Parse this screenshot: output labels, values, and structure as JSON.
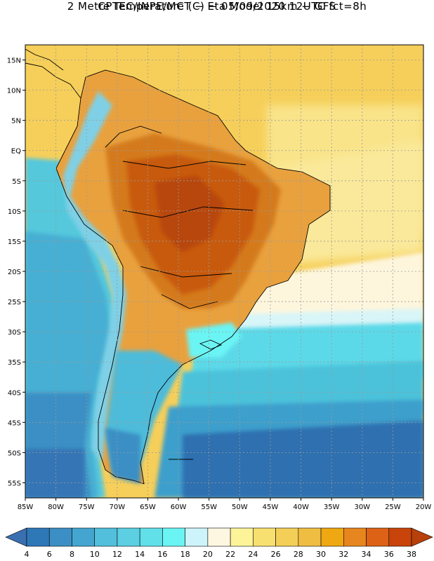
{
  "header": {
    "line1": "CPTEC/INPE/MCT −  Eta Model 15km − GFS",
    "line2": "2 Metre Temperature (C) − 05/09/2020 12UTC fct=8h"
  },
  "map": {
    "region": "South America",
    "lon_range": [
      -85,
      -20
    ],
    "lat_range": [
      -57.5,
      17.5
    ],
    "lat_ticks": [
      {
        "label": "15N",
        "value": 15
      },
      {
        "label": "10N",
        "value": 10
      },
      {
        "label": "5N",
        "value": 5
      },
      {
        "label": "EQ",
        "value": 0
      },
      {
        "label": "5S",
        "value": -5
      },
      {
        "label": "10S",
        "value": -10
      },
      {
        "label": "15S",
        "value": -15
      },
      {
        "label": "20S",
        "value": -20
      },
      {
        "label": "25S",
        "value": -25
      },
      {
        "label": "30S",
        "value": -30
      },
      {
        "label": "35S",
        "value": -35
      },
      {
        "label": "40S",
        "value": -40
      },
      {
        "label": "45S",
        "value": -45
      },
      {
        "label": "50S",
        "value": -50
      },
      {
        "label": "55S",
        "value": -55
      }
    ],
    "lon_ticks": [
      {
        "label": "85W",
        "value": -85
      },
      {
        "label": "80W",
        "value": -80
      },
      {
        "label": "75W",
        "value": -75
      },
      {
        "label": "70W",
        "value": -70
      },
      {
        "label": "65W",
        "value": -65
      },
      {
        "label": "60W",
        "value": -60
      },
      {
        "label": "55W",
        "value": -55
      },
      {
        "label": "50W",
        "value": -50
      },
      {
        "label": "45W",
        "value": -45
      },
      {
        "label": "40W",
        "value": -40
      },
      {
        "label": "35W",
        "value": -35
      },
      {
        "label": "30W",
        "value": -30
      },
      {
        "label": "25W",
        "value": -25
      },
      {
        "label": "20W",
        "value": -20
      }
    ]
  },
  "colorbar": {
    "labels": [
      "4",
      "6",
      "8",
      "10",
      "12",
      "14",
      "16",
      "18",
      "20",
      "22",
      "24",
      "26",
      "28",
      "30",
      "32",
      "34",
      "36",
      "38"
    ],
    "colors": [
      "#3a6fb0",
      "#2f78b8",
      "#3b8fc4",
      "#44a6d0",
      "#52bfdc",
      "#5ccfe2",
      "#62e0ea",
      "#6af4f4",
      "#cdf4fa",
      "#fdf7e2",
      "#fdf49a",
      "#f8e070",
      "#f3cf58",
      "#efbd42",
      "#f0a812",
      "#e7861e",
      "#dd6216",
      "#c8440a",
      "#b8400a"
    ]
  }
}
